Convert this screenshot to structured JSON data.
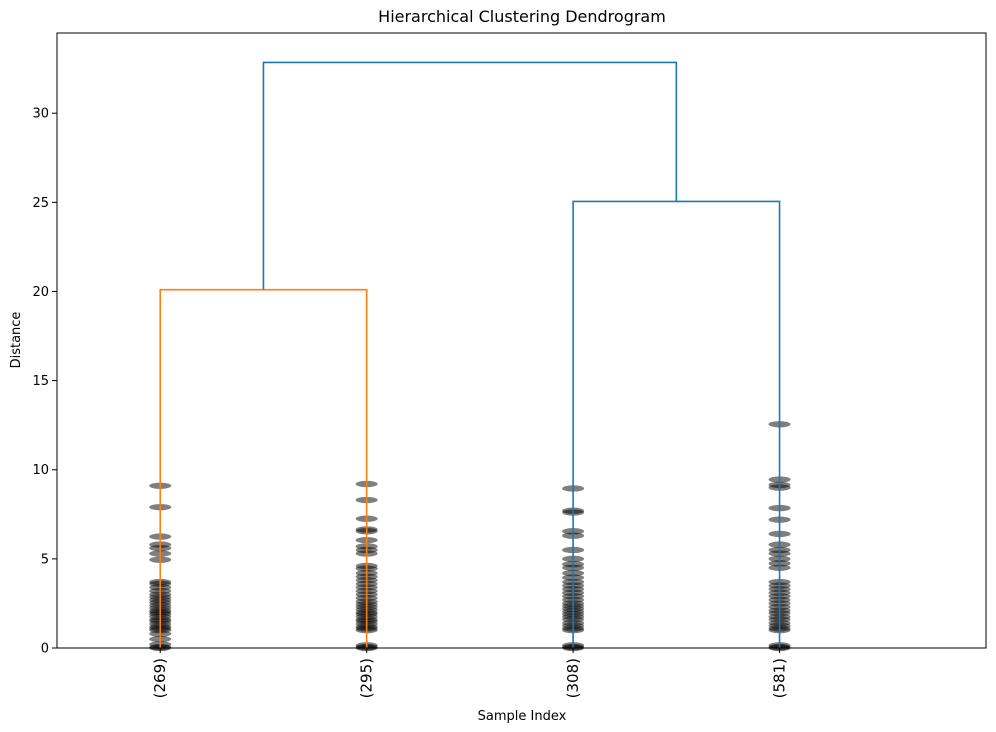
{
  "chart_data": {
    "type": "dendrogram",
    "title": "Hierarchical Clustering Dendrogram",
    "xlabel": "Sample Index",
    "ylabel": "Distance",
    "ylim": [
      0,
      34.5
    ],
    "yticks": [
      0,
      5,
      10,
      15,
      20,
      25,
      30
    ],
    "leaves": [
      "(269)",
      "(295)",
      "(308)",
      "(581)"
    ],
    "links": [
      {
        "left": 0,
        "right": 1,
        "height": 20.1,
        "color": "#ff7f0e"
      },
      {
        "left": 2,
        "right": 3,
        "height": 25.05,
        "color": "#1f77b4"
      },
      {
        "left": "link0",
        "right": "link1",
        "height": 32.85,
        "color": "#1f77b4"
      }
    ],
    "leaf_merge_distances": [
      [
        0,
        0.05,
        0.2,
        0.5,
        0.8,
        1.0,
        1.1,
        1.2,
        1.35,
        1.5,
        1.6,
        1.75,
        1.9,
        2.0,
        2.1,
        2.25,
        2.4,
        2.55,
        2.7,
        2.85,
        3.0,
        3.2,
        3.4,
        3.6,
        3.7,
        4.95,
        5.3,
        5.6,
        5.8,
        6.25,
        7.9,
        9.1
      ],
      [
        0,
        0.05,
        0.15,
        1.0,
        1.1,
        1.2,
        1.35,
        1.5,
        1.6,
        1.75,
        1.9,
        2.0,
        2.15,
        2.3,
        2.45,
        2.6,
        2.8,
        3.0,
        3.2,
        3.4,
        3.6,
        3.8,
        4.0,
        4.2,
        4.45,
        4.6,
        5.3,
        5.5,
        5.7,
        6.05,
        6.55,
        6.65,
        7.25,
        8.3,
        9.2
      ],
      [
        0,
        0.05,
        0.15,
        1.0,
        1.1,
        1.25,
        1.4,
        1.6,
        1.75,
        1.9,
        2.05,
        2.2,
        2.35,
        2.5,
        2.7,
        2.9,
        3.1,
        3.3,
        3.5,
        3.7,
        3.95,
        4.2,
        4.5,
        4.7,
        5.0,
        5.5,
        6.3,
        6.55,
        7.6,
        7.7,
        8.95
      ],
      [
        0,
        0.05,
        0.15,
        1.0,
        1.1,
        1.25,
        1.4,
        1.6,
        1.75,
        1.95,
        2.1,
        2.3,
        2.5,
        2.7,
        2.9,
        3.1,
        3.3,
        3.5,
        3.7,
        4.5,
        4.75,
        5.0,
        5.3,
        5.5,
        5.8,
        6.4,
        7.2,
        7.85,
        9.0,
        9.15,
        9.45,
        12.55
      ]
    ],
    "leaf_marker_color": "#000000",
    "grid": false,
    "legend": "none"
  }
}
